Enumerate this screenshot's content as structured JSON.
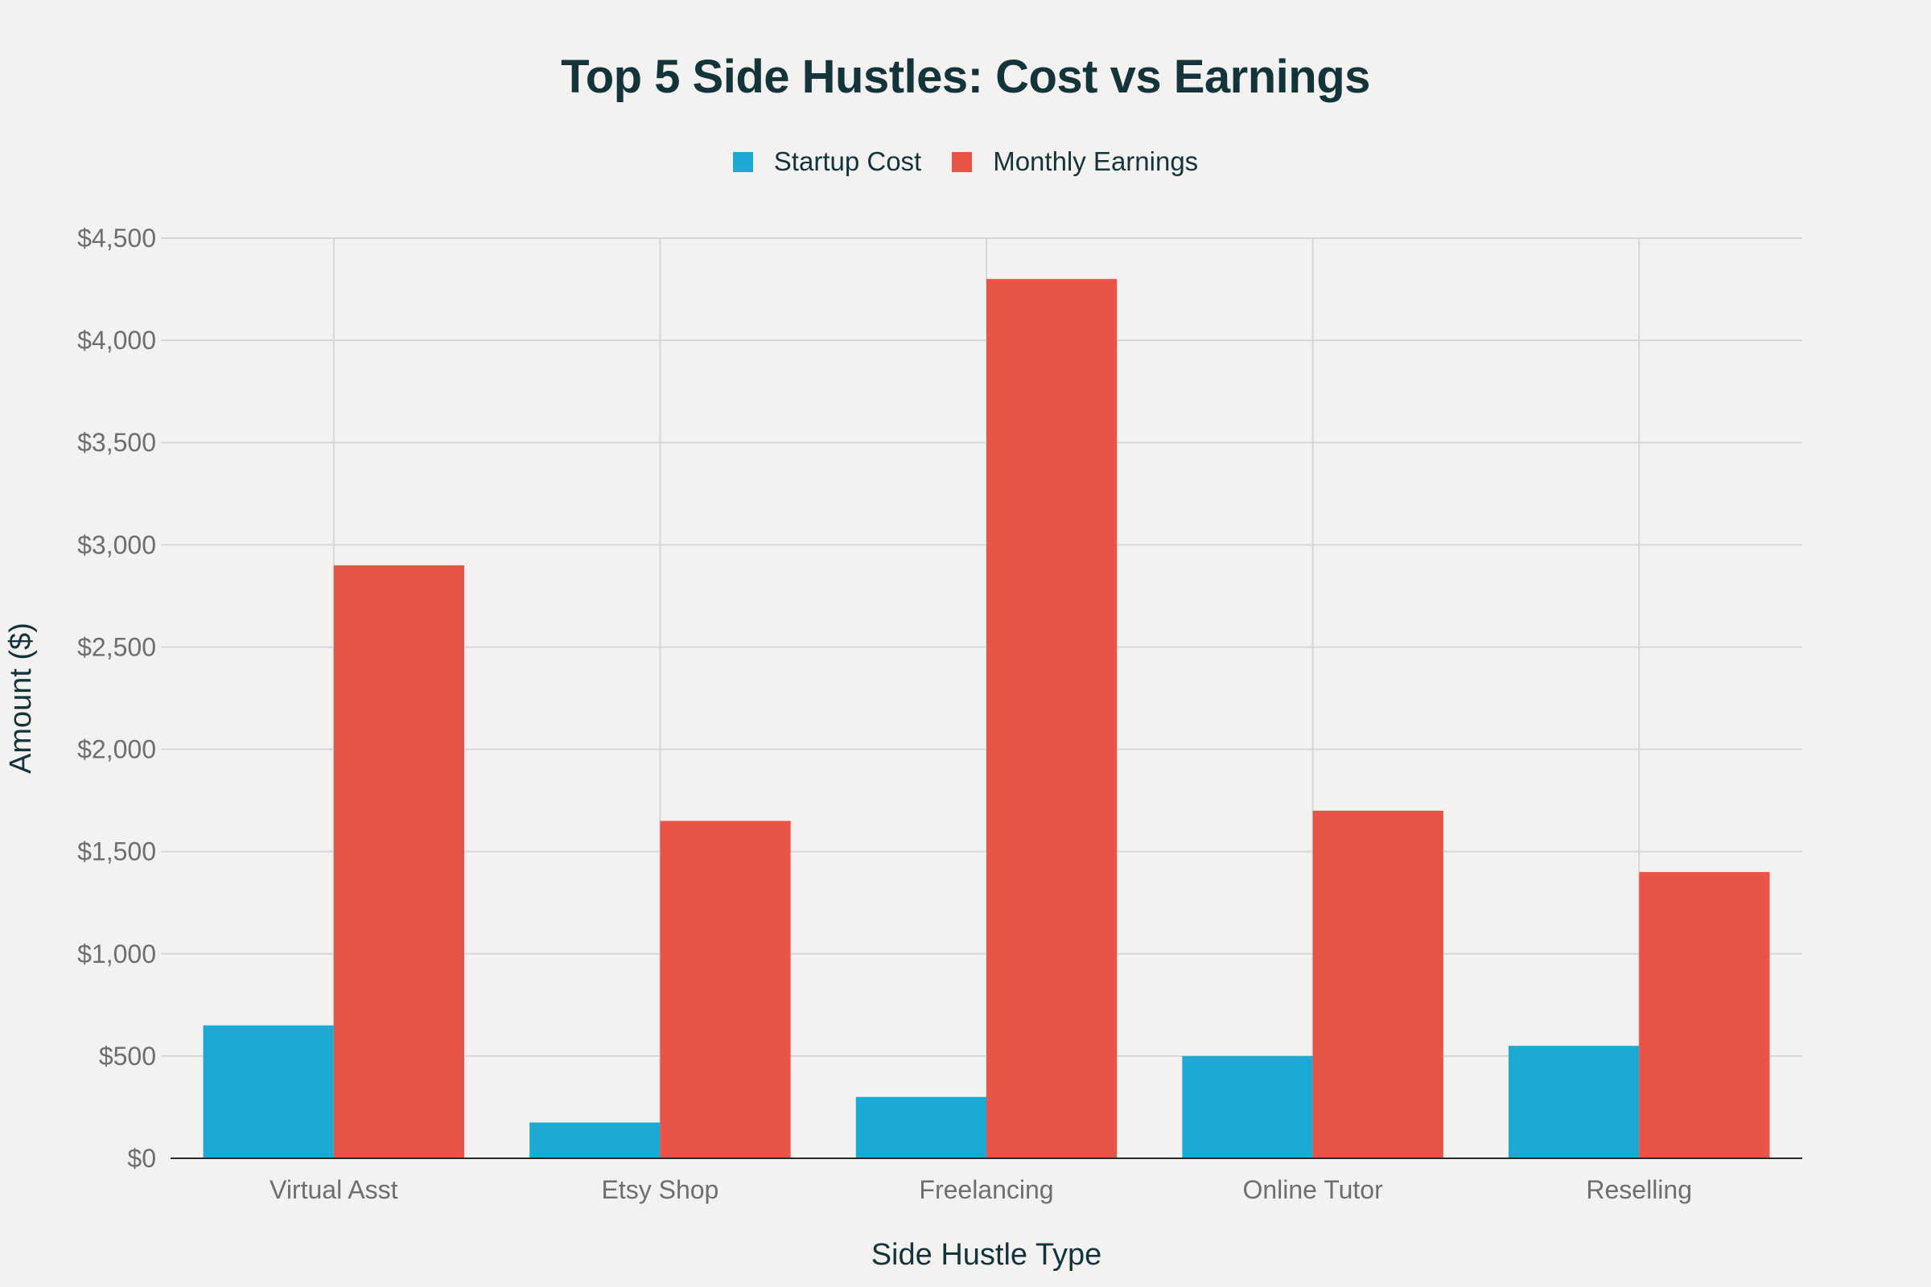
{
  "chart_data": {
    "type": "bar",
    "title": "Top 5 Side Hustles: Cost vs Earnings",
    "xlabel": "Side Hustle Type",
    "ylabel": "Amount ($)",
    "categories": [
      "Virtual Asst",
      "Etsy Shop",
      "Freelancing",
      "Online Tutor",
      "Reselling"
    ],
    "series": [
      {
        "name": "Startup Cost",
        "color": "#1aaad3",
        "values": [
          650,
          175,
          300,
          500,
          550
        ]
      },
      {
        "name": "Monthly Earnings",
        "color": "#e85447",
        "values": [
          2900,
          1650,
          4300,
          1700,
          1400
        ]
      }
    ],
    "ylim": [
      0,
      4500
    ],
    "yticks": [
      0,
      500,
      1000,
      1500,
      2000,
      2500,
      3000,
      3500,
      4000,
      4500
    ],
    "ytick_labels": [
      "$0",
      "$500",
      "$1,000",
      "$1,500",
      "$2,000",
      "$2,500",
      "$3,000",
      "$3,500",
      "$4,000",
      "$4,500"
    ],
    "grid": true,
    "legend_position": "top-center"
  }
}
